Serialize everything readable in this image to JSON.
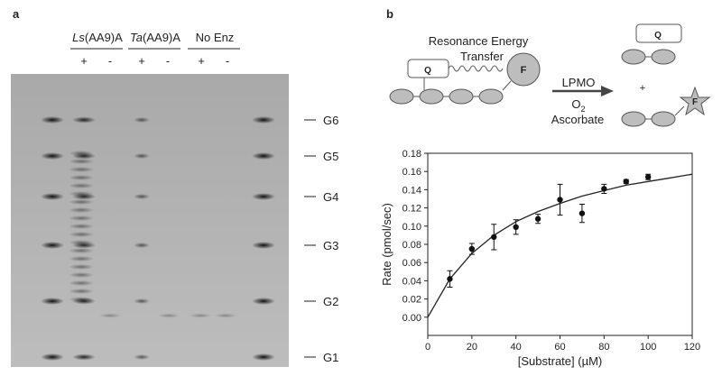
{
  "panel_a": {
    "label": "a",
    "lanes": [
      {
        "italic": "Ls",
        "rest": "(AA9)A"
      },
      {
        "italic": "Ta",
        "rest": "(AA9)A"
      },
      {
        "italic": "",
        "rest": "No Enz"
      }
    ],
    "plus": "+",
    "minus": "-",
    "markers": [
      "G6",
      "G5",
      "G4",
      "G3",
      "G2",
      "G1"
    ]
  },
  "schematic": {
    "label": "b",
    "fret_line1": "Resonance Energy",
    "fret_line2": "Transfer",
    "enzyme": "LPMO",
    "oxygen": "O",
    "oxygen_sub": "2",
    "reductant": "Ascorbate",
    "plus": "+",
    "quencher": "Q",
    "fluorophore": "F"
  },
  "chart_data": {
    "type": "scatter",
    "x_label": "[Substrate] (µM)",
    "y_label": "Rate (pmol/sec)",
    "x": [
      10,
      20,
      30,
      40,
      50,
      60,
      70,
      80,
      90,
      100
    ],
    "values": [
      0.042,
      0.075,
      0.088,
      0.099,
      0.108,
      0.129,
      0.114,
      0.141,
      0.149,
      0.154
    ],
    "errors": [
      0.009,
      0.006,
      0.014,
      0.008,
      0.005,
      0.017,
      0.01,
      0.005,
      0.002,
      0.003
    ],
    "color": "#111111",
    "fit": {
      "x": [
        0,
        10,
        20,
        30,
        40,
        50,
        60,
        70,
        80,
        90,
        100,
        110,
        120
      ],
      "values": [
        0,
        0.042,
        0.07,
        0.09,
        0.105,
        0.116,
        0.125,
        0.133,
        0.139,
        0.145,
        0.149,
        0.153,
        0.157
      ],
      "color": "#222222"
    },
    "xlim": [
      0,
      120
    ],
    "ylim": [
      -0.02,
      0.18
    ],
    "xticks": [
      0,
      20,
      40,
      60,
      80,
      100,
      120
    ],
    "yticks": [
      {
        "value": 0,
        "label": "0.00"
      },
      {
        "value": 0.02,
        "label": "0.02"
      },
      {
        "value": 0.04,
        "label": "0.04"
      },
      {
        "value": 0.06,
        "label": "0.06"
      },
      {
        "value": 0.08,
        "label": "0.08"
      },
      {
        "value": 0.1,
        "label": "0.10"
      },
      {
        "value": 0.12,
        "label": "0.12"
      },
      {
        "value": 0.14,
        "label": "0.14"
      },
      {
        "value": 0.16,
        "label": "0.16"
      },
      {
        "value": 0.18,
        "label": "0.18"
      }
    ]
  }
}
